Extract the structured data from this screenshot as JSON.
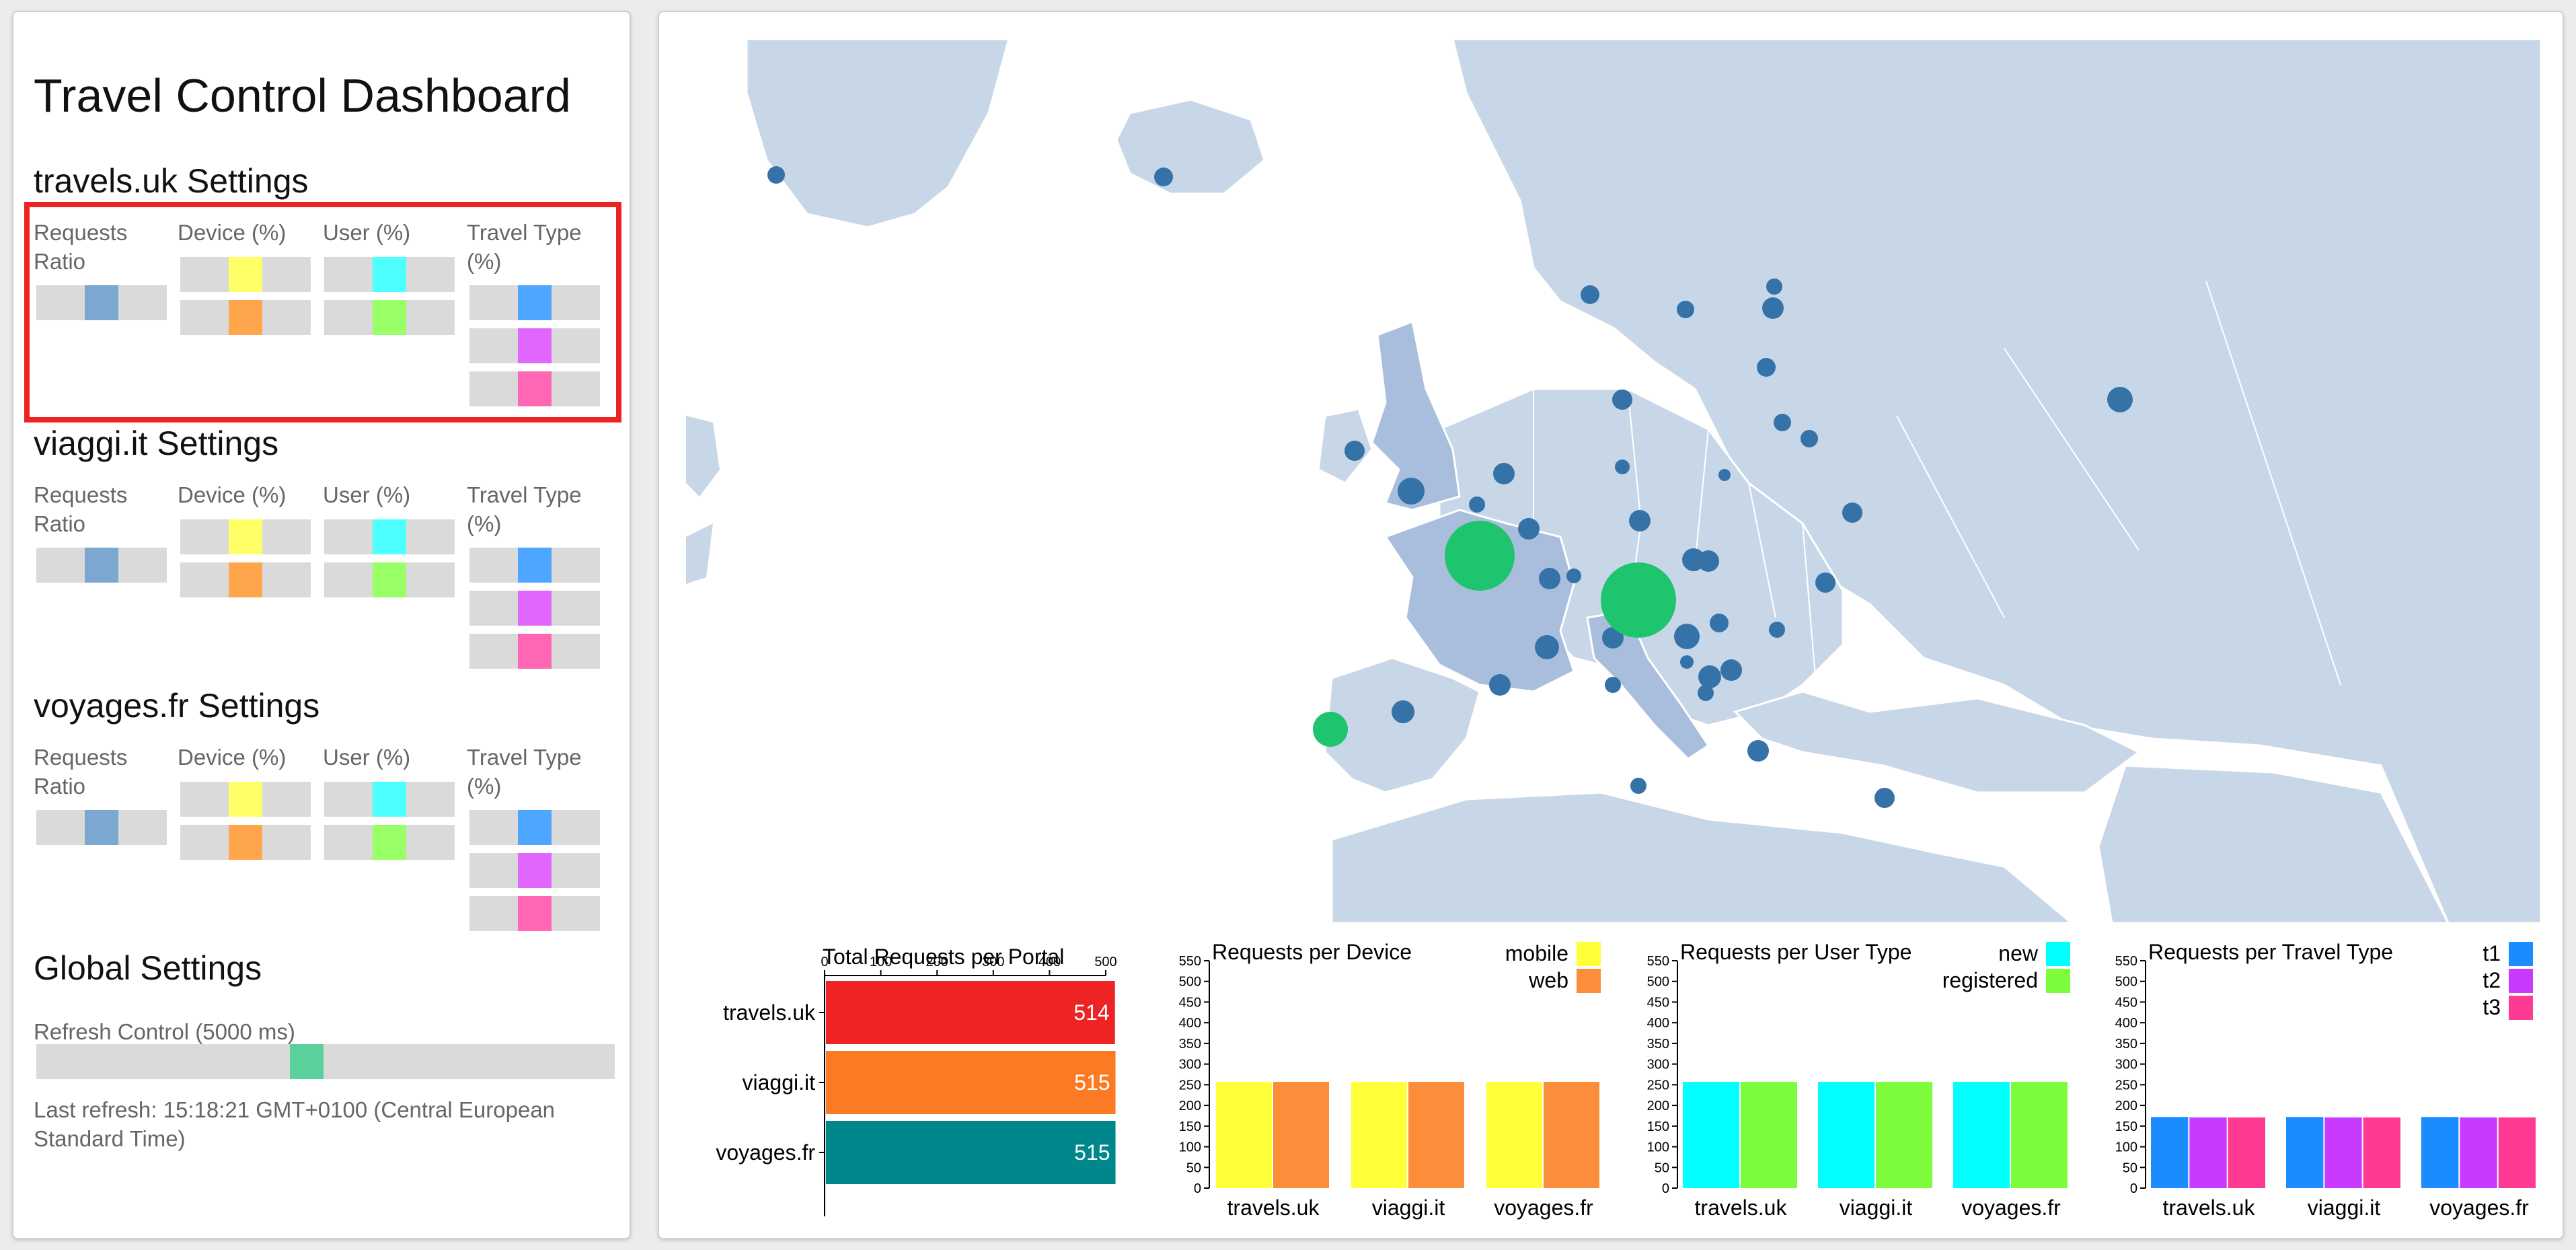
{
  "dashboard": {
    "title": "Travel Control Dashboard"
  },
  "portals": [
    {
      "title": "travels.uk Settings"
    },
    {
      "title": "viaggi.it Settings"
    },
    {
      "title": "voyages.fr Settings"
    }
  ],
  "columns": {
    "ratio": "Requests Ratio",
    "device": "Device (%)",
    "user": "User (%)",
    "travel": "Travel Type (%)"
  },
  "global": {
    "title": "Global Settings",
    "refresh_label": "Refresh Control (5000 ms)",
    "refresh_value": 0.5,
    "last_refresh": "Last refresh: 15:18:21 GMT+0100 (Central European Standard Time)"
  },
  "colors": {
    "ratio": "#7ba7d0",
    "mobile": "#ffff66",
    "web": "#ffa64d",
    "new": "#4dffff",
    "registered": "#99ff66",
    "t1": "#4da6ff",
    "t2": "#e066ff",
    "t3": "#ff66b3",
    "refresh": "#5ad19a",
    "map_land": "#c8d7e8",
    "map_region": "#a9bedc",
    "city": "#3572a8",
    "hotspot": "#1ec46e"
  },
  "chart_data": [
    {
      "type": "bar",
      "title": "Total Requests per Portal",
      "orientation": "horizontal",
      "categories": [
        "travels.uk",
        "viaggi.it",
        "voyages.fr"
      ],
      "values": [
        514,
        515,
        515
      ],
      "value_labels": [
        "514",
        "515",
        "515"
      ],
      "colors": [
        "#ee2323",
        "#fd7a25",
        "#00878c"
      ],
      "xlim": [
        0,
        500
      ],
      "xticks": [
        "0",
        "100",
        "200",
        "300",
        "400",
        "500"
      ]
    },
    {
      "type": "bar",
      "title": "Requests per Device",
      "categories": [
        "travels.uk",
        "viaggi.it",
        "voyages.fr"
      ],
      "series": [
        {
          "name": "mobile",
          "values": [
            257,
            257,
            257
          ],
          "color": "#ffff3a"
        },
        {
          "name": "web",
          "values": [
            257,
            257,
            257
          ],
          "color": "#fc8d3a"
        }
      ],
      "ylim": [
        0,
        550
      ],
      "yticks": [
        "0",
        "50",
        "100",
        "150",
        "200",
        "250",
        "300",
        "350",
        "400",
        "450",
        "500",
        "550"
      ]
    },
    {
      "type": "bar",
      "title": "Requests per User Type",
      "categories": [
        "travels.uk",
        "viaggi.it",
        "voyages.fr"
      ],
      "series": [
        {
          "name": "new",
          "values": [
            257,
            257,
            257
          ],
          "color": "#00ffff"
        },
        {
          "name": "registered",
          "values": [
            257,
            257,
            257
          ],
          "color": "#7cfc3a"
        }
      ],
      "ylim": [
        0,
        550
      ],
      "yticks": [
        "0",
        "50",
        "100",
        "150",
        "200",
        "250",
        "300",
        "350",
        "400",
        "450",
        "500",
        "550"
      ]
    },
    {
      "type": "bar",
      "title": "Requests per Travel Type",
      "categories": [
        "travels.uk",
        "viaggi.it",
        "voyages.fr"
      ],
      "series": [
        {
          "name": "t1",
          "values": [
            172,
            172,
            172
          ],
          "color": "#1a8cff"
        },
        {
          "name": "t2",
          "values": [
            171,
            171,
            171
          ],
          "color": "#c83aff"
        },
        {
          "name": "t3",
          "values": [
            171,
            171,
            171
          ],
          "color": "#ff3a93"
        }
      ],
      "ylim": [
        0,
        550
      ],
      "yticks": [
        "0",
        "50",
        "100",
        "150",
        "200",
        "250",
        "300",
        "350",
        "400",
        "450",
        "500",
        "550"
      ]
    }
  ]
}
